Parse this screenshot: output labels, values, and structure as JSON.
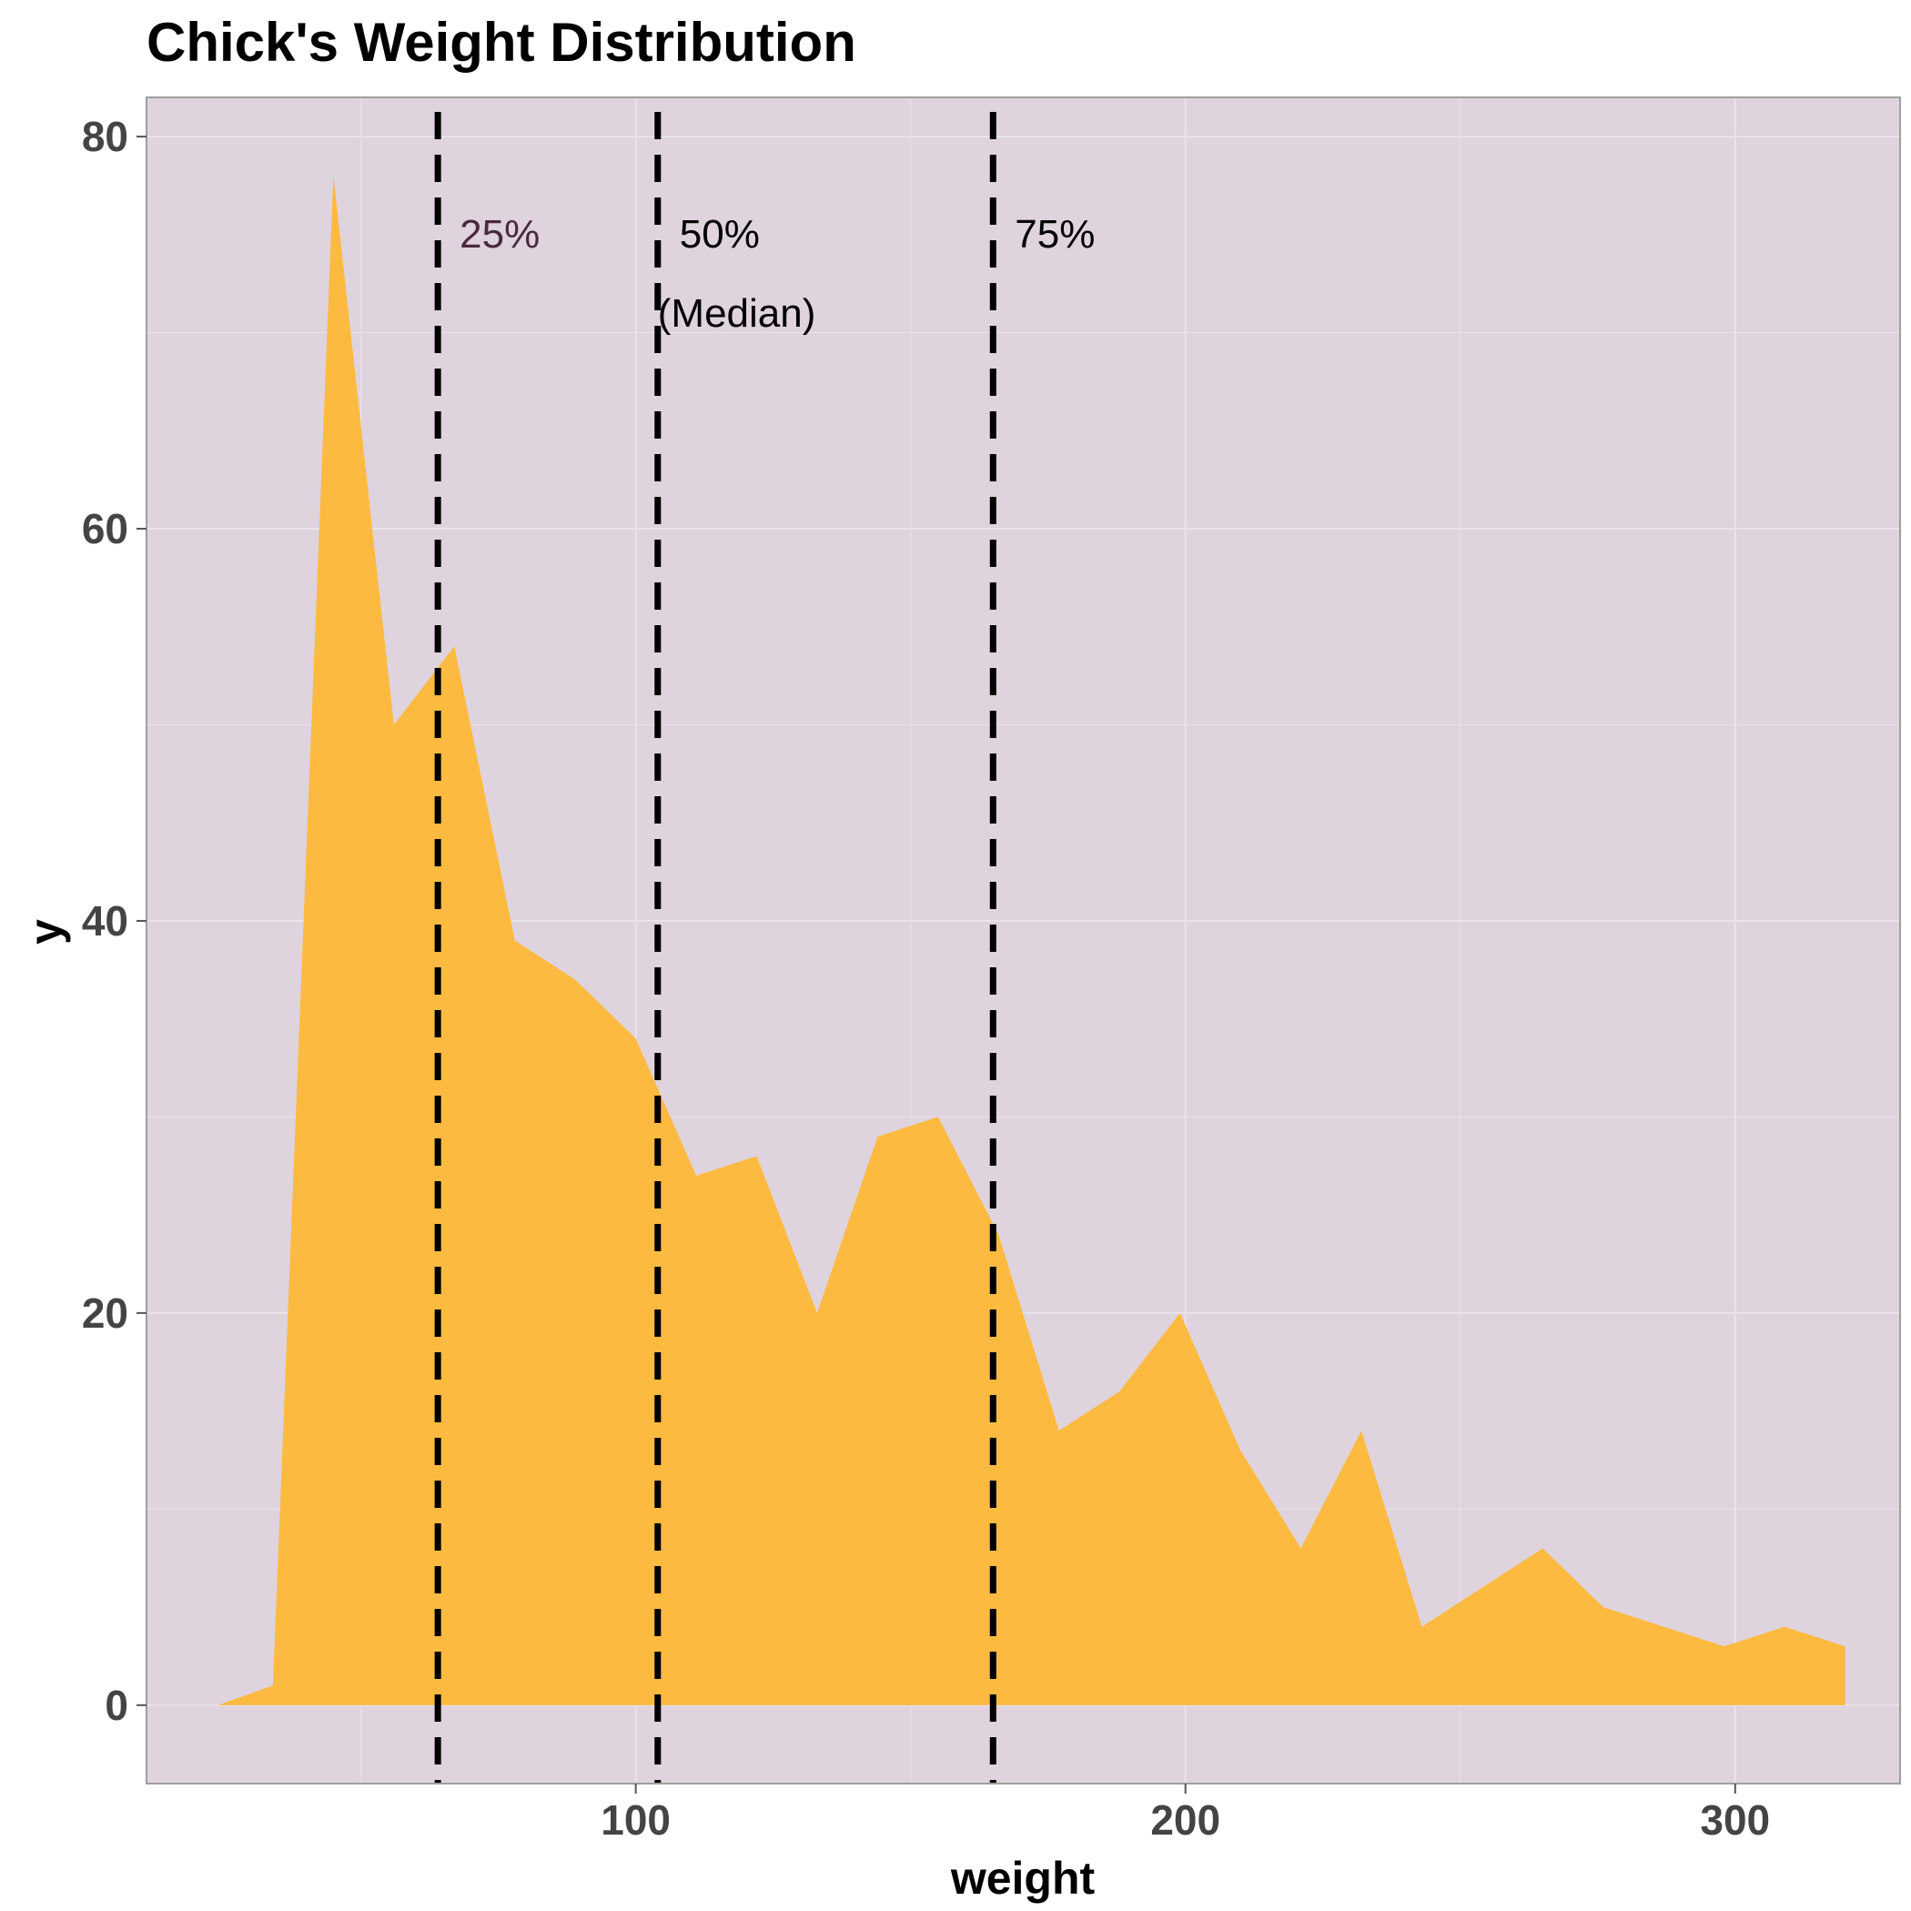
{
  "chart_data": {
    "type": "area",
    "title": "Chick's Weight Distribution",
    "xlabel": "weight",
    "ylabel": "y",
    "xlim": [
      11,
      330
    ],
    "ylim": [
      -4,
      82
    ],
    "x_ticks": [
      100,
      200,
      300
    ],
    "x_tick_labels": [
      "100",
      "200",
      "300"
    ],
    "y_ticks": [
      0,
      20,
      40,
      60,
      80
    ],
    "y_tick_labels": [
      "0",
      "20",
      "40",
      "60",
      "80"
    ],
    "grid": true,
    "legend": "none",
    "colors": {
      "panel_background": "#dfd3dd",
      "grid_line": "#ebe3ea",
      "area_fill": "#fdba40",
      "quantile_line": "#000000",
      "panel_border": "#9e9e9e",
      "tick_text": "#444444",
      "title_text": "#000000",
      "annotation_text": "#000000",
      "annotation_text_alt": "#4a2a40"
    },
    "series": [
      {
        "x": [
          24,
          34,
          45,
          56,
          67,
          78,
          89,
          100,
          111,
          122,
          133,
          144,
          155,
          166,
          177,
          188,
          199,
          210,
          221,
          232,
          243,
          254,
          265,
          276,
          287,
          298,
          309,
          320
        ],
        "values": [
          0,
          1,
          78,
          50,
          54,
          39,
          37,
          34,
          27,
          28,
          20,
          29,
          30,
          24,
          14,
          16,
          20,
          13,
          8,
          14,
          4,
          6,
          8,
          5,
          4,
          3,
          4,
          3
        ]
      }
    ],
    "quantiles": [
      {
        "x": 64,
        "labels": [
          "25%"
        ]
      },
      {
        "x": 104,
        "labels": [
          "50%",
          "(Median)"
        ]
      },
      {
        "x": 165,
        "labels": [
          "75%"
        ]
      }
    ]
  }
}
